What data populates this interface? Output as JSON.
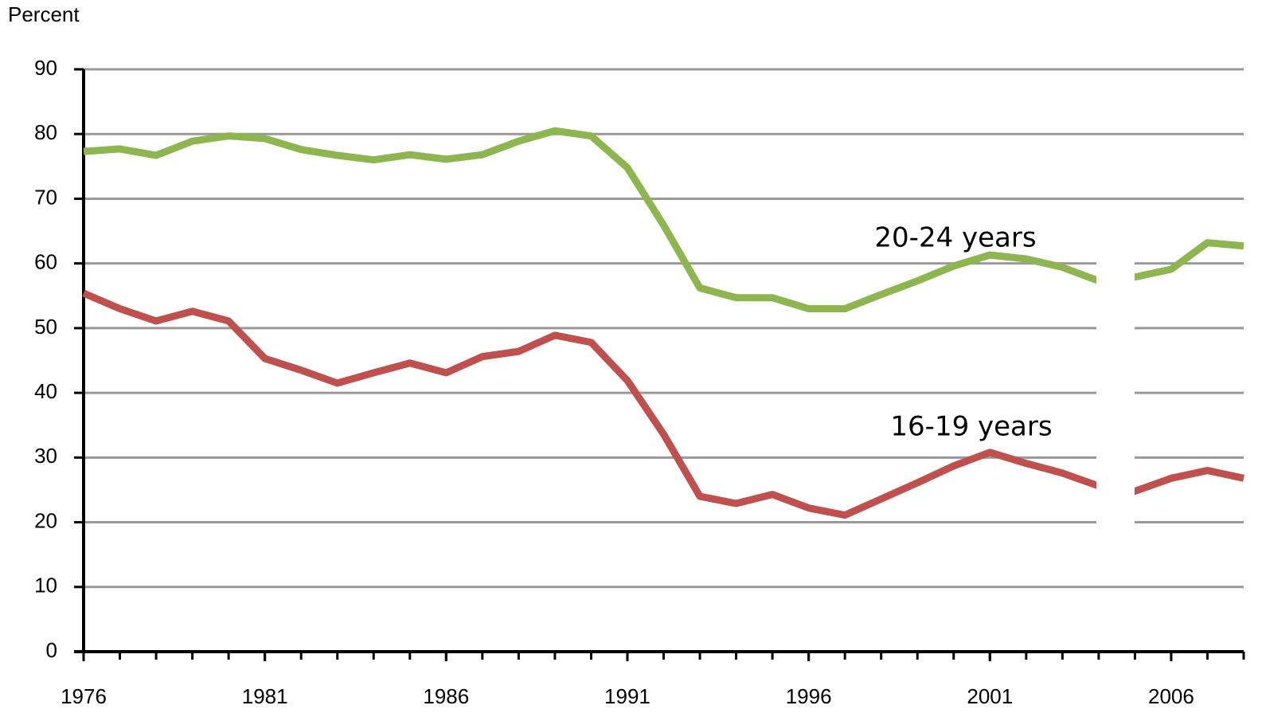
{
  "chart_data": {
    "type": "line",
    "y_label": "Percent",
    "x": [
      1976,
      1977,
      1978,
      1979,
      1980,
      1981,
      1982,
      1983,
      1984,
      1985,
      1986,
      1987,
      1988,
      1989,
      1990,
      1991,
      1992,
      1993,
      1994,
      1995,
      1996,
      1997,
      1998,
      1999,
      2000,
      2001,
      2002,
      2003,
      2004,
      2005,
      2006,
      2007,
      2008
    ],
    "series": [
      {
        "name": "20-24 years",
        "color": "#8db64e",
        "values": [
          77.3,
          77.7,
          76.7,
          78.9,
          79.7,
          79.3,
          77.6,
          76.7,
          76.0,
          76.8,
          76.1,
          76.8,
          78.9,
          80.5,
          79.7,
          74.8,
          65.9,
          56.2,
          54.7,
          54.7,
          53.0,
          53.0,
          55.2,
          57.3,
          59.6,
          61.3,
          60.7,
          59.4,
          57.3,
          57.9,
          59.1,
          63.2,
          62.7
        ]
      },
      {
        "name": "16-19 years",
        "color": "#c0504d",
        "values": [
          55.4,
          53.0,
          51.1,
          52.6,
          51.1,
          45.3,
          43.5,
          41.5,
          43.1,
          44.6,
          43.1,
          45.6,
          46.4,
          48.9,
          47.8,
          41.9,
          33.6,
          24.0,
          22.9,
          24.3,
          22.2,
          21.1,
          23.6,
          26.1,
          28.7,
          30.8,
          29.1,
          27.6,
          25.6,
          24.8,
          26.8,
          28.0,
          26.8
        ]
      }
    ],
    "xlim": [
      1976,
      2008
    ],
    "xticks": [
      1976,
      1981,
      1986,
      1991,
      1996,
      2001,
      2006
    ],
    "ylim": [
      0,
      90
    ],
    "yticks": [
      0,
      10,
      20,
      30,
      40,
      50,
      60,
      70,
      80,
      90
    ],
    "grid": true
  }
}
